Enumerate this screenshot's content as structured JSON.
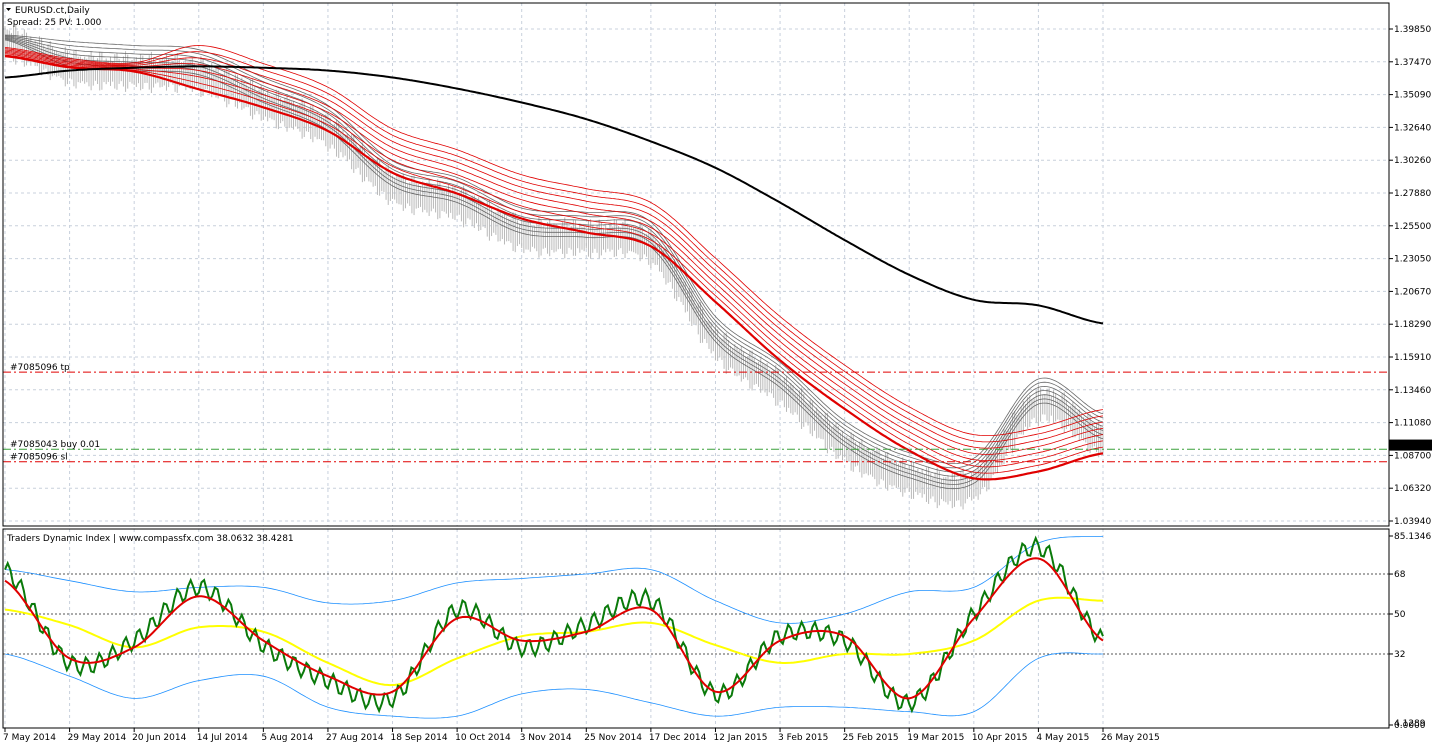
{
  "window": {
    "title": "EURUSD.ct,Daily",
    "spread_label": "Spread: 25   PV: 1.000"
  },
  "colors": {
    "background": "#ffffff",
    "grid": "#c8d0dc",
    "frame": "#000000",
    "price_bars": "#b9b9b9",
    "gray_ribbon": "#5a5a5a",
    "red_ribbon": "#e00000",
    "long_ma": "#000000",
    "tp_line": "#e00000",
    "sl_line": "#e00000",
    "entry_line": "#3aa03a",
    "tdi_green": "#0a7a0a",
    "tdi_red": "#e00000",
    "tdi_yellow": "#ffff00",
    "tdi_bands": "#1e90ff"
  },
  "price_axis": {
    "ticks": [
      "1.39850",
      "1.37470",
      "1.35090",
      "1.32640",
      "1.30260",
      "1.27880",
      "1.25500",
      "1.23050",
      "1.20670",
      "1.18290",
      "1.15910",
      "1.13460",
      "1.11080",
      "1.08700",
      "1.06320",
      "1.03940"
    ],
    "current_price": "1.09511"
  },
  "trade_lines": {
    "tp": {
      "label": "#7085096 tp",
      "price": 1.148
    },
    "buy": {
      "label": "#7085043 buy 0.01",
      "price": 1.0925
    },
    "sl": {
      "label": "#7085096 sl",
      "price": 1.0835
    }
  },
  "indicator": {
    "header": "Traders Dynamic Index | www.compassfx.com  38.0632 38.4281",
    "axis_ticks": [
      "85.1346",
      "68",
      "50",
      "32",
      "0.0000"
    ],
    "axis_min_label": "4.1289",
    "levels": [
      68,
      50,
      32
    ]
  },
  "time_axis": {
    "labels": [
      "7 May 2014",
      "29 May 2014",
      "20 Jun 2014",
      "14 Jul 2014",
      "5 Aug 2014",
      "27 Aug 2014",
      "18 Sep 2014",
      "10 Oct 2014",
      "3 Nov 2014",
      "25 Nov 2014",
      "17 Dec 2014",
      "12 Jan 2015",
      "3 Feb 2015",
      "25 Feb 2015",
      "19 Mar 2015",
      "10 Apr 2015",
      "4 May 2015",
      "26 May 2015"
    ]
  },
  "chart_data": [
    {
      "type": "line",
      "title": "EURUSD.ct,Daily",
      "x": [
        "7 May 2014",
        "29 May 2014",
        "20 Jun 2014",
        "14 Jul 2014",
        "5 Aug 2014",
        "27 Aug 2014",
        "18 Sep 2014",
        "10 Oct 2014",
        "3 Nov 2014",
        "25 Nov 2014",
        "17 Dec 2014",
        "12 Jan 2015",
        "3 Feb 2015",
        "25 Feb 2015",
        "19 Mar 2015",
        "10 Apr 2015",
        "4 May 2015",
        "26 May 2015"
      ],
      "ylim": [
        1.0394,
        1.41
      ],
      "series": [
        {
          "name": "",
          "values": [
            1.387,
            1.368,
            1.365,
            1.362,
            1.342,
            1.322,
            1.282,
            1.27,
            1.248,
            1.245,
            1.238,
            1.17,
            1.137,
            1.095,
            1.072,
            1.068,
            1.125,
            1.1
          ]
        },
        {
          "name": "",
          "values": [
            1.378,
            1.37,
            1.367,
            1.365,
            1.352,
            1.335,
            1.305,
            1.29,
            1.272,
            1.262,
            1.252,
            1.212,
            1.17,
            1.135,
            1.105,
            1.085,
            1.09,
            1.103
          ]
        },
        {
          "name": "",
          "values": [
            1.36,
            1.365,
            1.367,
            1.368,
            1.367,
            1.365,
            1.36,
            1.352,
            1.342,
            1.33,
            1.314,
            1.295,
            1.27,
            1.243,
            1.218,
            1.2,
            1.196,
            1.183
          ]
        }
      ]
    },
    {
      "type": "line",
      "title": "Traders Dynamic Index | www.compassfx.com  38.0632 38.4281",
      "x": [
        "7 May 2014",
        "29 May 2014",
        "20 Jun 2014",
        "14 Jul 2014",
        "5 Aug 2014",
        "27 Aug 2014",
        "18 Sep 2014",
        "10 Oct 2014",
        "3 Nov 2014",
        "25 Nov 2014",
        "17 Dec 2014",
        "12 Jan 2015",
        "3 Feb 2015",
        "25 Feb 2015",
        "19 Mar 2015",
        "10 Apr 2015",
        "4 May 2015",
        "26 May 2015"
      ],
      "ylim": [
        0,
        85.1346
      ],
      "series": [
        {
          "name": "",
          "values": [
            70,
            28,
            38,
            62,
            36,
            20,
            12,
            52,
            35,
            45,
            56,
            14,
            40,
            38,
            10,
            50,
            80,
            38
          ]
        },
        {
          "name": "",
          "values": [
            65,
            30,
            35,
            58,
            38,
            22,
            15,
            48,
            38,
            42,
            52,
            15,
            38,
            40,
            12,
            48,
            75,
            38
          ]
        },
        {
          "name": "",
          "values": [
            52,
            45,
            35,
            44,
            42,
            28,
            18,
            30,
            40,
            42,
            46,
            36,
            28,
            32,
            32,
            38,
            56,
            56
          ]
        },
        {
          "name": "",
          "values": [
            70,
            65,
            60,
            62,
            62,
            55,
            56,
            64,
            66,
            68,
            70,
            56,
            46,
            50,
            60,
            62,
            82,
            85
          ]
        },
        {
          "name": "",
          "values": [
            32,
            22,
            12,
            20,
            22,
            8,
            4,
            4,
            14,
            16,
            10,
            4,
            8,
            8,
            6,
            6,
            30,
            32
          ]
        }
      ]
    }
  ]
}
